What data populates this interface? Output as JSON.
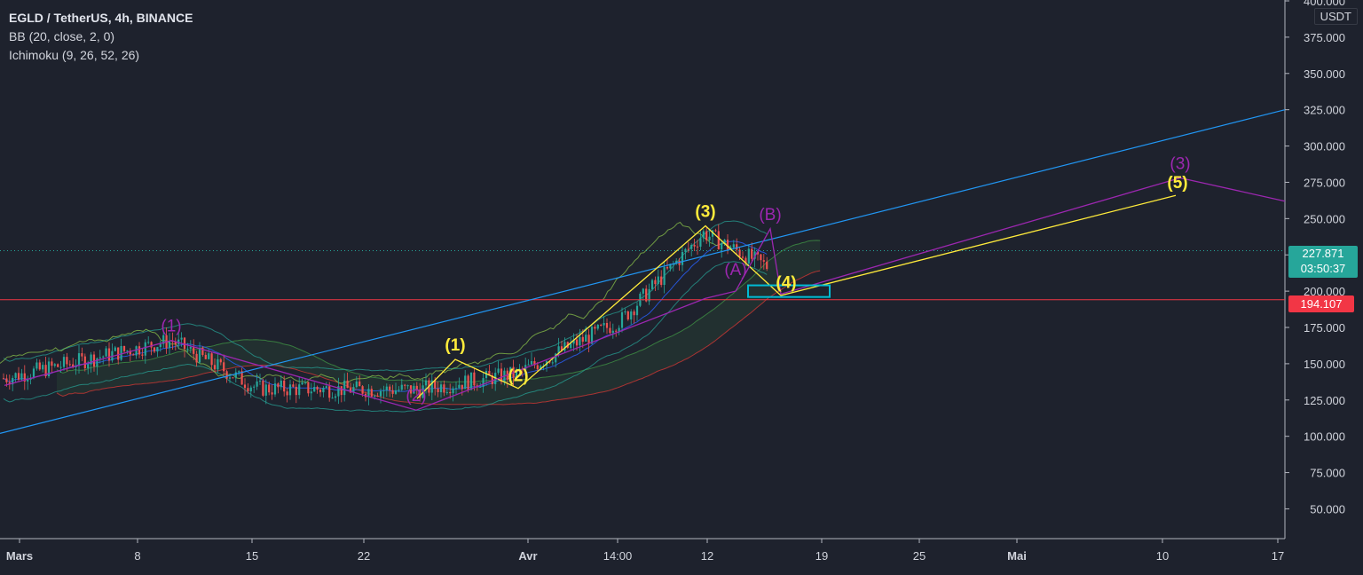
{
  "header": {
    "symbol": "EGLD / TetherUS, 4h, BINANCE",
    "indicator_bb": "BB (20, close, 2, 0)",
    "indicator_ichimoku": "Ichimoku (9, 26, 52, 26)"
  },
  "price_axis": {
    "currency": "USDT",
    "current_price": "227.871",
    "countdown": "03:50:37",
    "support_price": "194.107"
  },
  "colors": {
    "background": "#1e222d",
    "up_candle": "#26a69a",
    "down_candle": "#ef5350",
    "impulse_wave": "#ffeb3b",
    "corrective_wave": "#9c27b0",
    "trendline": "#2196f3",
    "support_line": "#f23645",
    "target_box": "#00bcd4"
  },
  "chart_data": {
    "type": "line",
    "title": "EGLD / TetherUS, 4h, BINANCE",
    "xlabel": "",
    "ylabel": "",
    "ylim": [
      30,
      405
    ],
    "y_ticks": [
      50,
      75,
      100,
      125,
      150,
      175,
      200,
      225,
      250,
      275,
      300,
      325,
      350,
      375,
      400
    ],
    "x_tick_labels": [
      "Mars",
      "8",
      "15",
      "22",
      "Avr",
      "14:00",
      "12",
      "19",
      "25",
      "Mai",
      "10",
      "17"
    ],
    "grid": false,
    "current_price": 227.871,
    "support_level": 194.107,
    "price_path": [
      [
        "Mars",
        140
      ],
      [
        "8",
        166
      ],
      [
        "15",
        133
      ],
      [
        "22",
        132
      ],
      [
        "Avr",
        143
      ],
      [
        "14:00",
        180
      ],
      [
        "12",
        240
      ],
      [
        "19",
        212
      ]
    ],
    "impulse_wave_labels": [
      {
        "label": "(1)",
        "date": "8",
        "price": 153
      },
      {
        "label": "(2)",
        "date": "22",
        "price": 132
      },
      {
        "label": "(3)",
        "date": "12",
        "price": 245
      },
      {
        "label": "(4)",
        "date": "19",
        "price": 196
      },
      {
        "label": "(5)",
        "date": "10",
        "price": 265
      }
    ],
    "corrective_wave_labels": [
      {
        "label": "(1)",
        "date": "8",
        "price": 166
      },
      {
        "label": "(2)",
        "date": "22",
        "price": 118
      },
      {
        "label": "(A)",
        "date": "12",
        "price": 205
      },
      {
        "label": "(B)",
        "date": "12",
        "price": 243
      },
      {
        "label": "(3)",
        "date": "10",
        "price": 278
      }
    ],
    "target_zone": {
      "low": 196,
      "high": 204
    }
  }
}
